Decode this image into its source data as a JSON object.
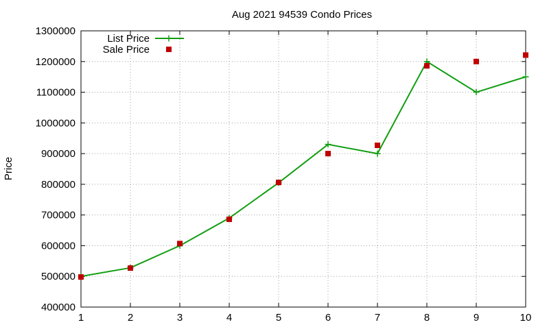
{
  "chart_data": {
    "type": "line",
    "title": "Aug 2021 94539 Condo Prices",
    "xlabel": "",
    "ylabel": "Price",
    "x": [
      1,
      2,
      3,
      4,
      5,
      6,
      7,
      8,
      9,
      10
    ],
    "xlim": [
      1,
      10
    ],
    "ylim": [
      400000,
      1300000
    ],
    "y_ticks": [
      400000,
      500000,
      600000,
      700000,
      800000,
      900000,
      1000000,
      1100000,
      1200000,
      1300000
    ],
    "grid": true,
    "legend_position": "top-left",
    "series": [
      {
        "name": "List Price",
        "style": "line-points",
        "marker": "plus",
        "color": "#109d10",
        "values": [
          500000,
          528000,
          600000,
          690000,
          805000,
          930000,
          900000,
          1200000,
          1100000,
          1150000
        ]
      },
      {
        "name": "Sale Price",
        "style": "points",
        "marker": "square",
        "color": "#c00000",
        "values": [
          498000,
          527000,
          607000,
          686000,
          806000,
          900000,
          927000,
          1186000,
          1200000,
          1221000
        ]
      }
    ]
  }
}
